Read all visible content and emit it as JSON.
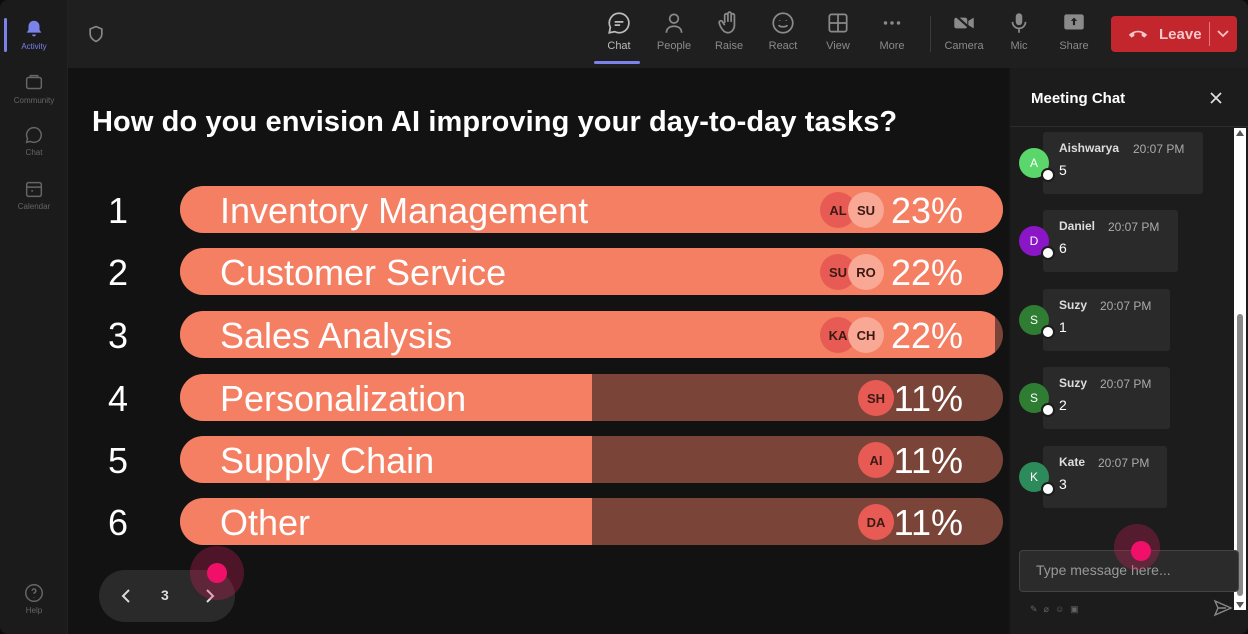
{
  "rail": {
    "items": [
      {
        "label": "Activity"
      },
      {
        "label": "Community"
      },
      {
        "label": "Chat"
      },
      {
        "label": "Calendar"
      },
      {
        "label": "Help"
      }
    ]
  },
  "toolbar": {
    "chat": "Chat",
    "people": "People",
    "raise": "Raise",
    "react": "React",
    "view": "View",
    "more": "More",
    "camera": "Camera",
    "mic": "Mic",
    "share": "Share",
    "leave": "Leave"
  },
  "poll": {
    "question": "How do you envision AI improving your day-to-day tasks?",
    "options": [
      {
        "rank": "1",
        "label": "Inventory Management",
        "percent": "23%",
        "fill": 1.0,
        "avatars": [
          "AL",
          "SU"
        ]
      },
      {
        "rank": "2",
        "label": "Customer Service",
        "percent": "22%",
        "fill": 1.0,
        "avatars": [
          "SU",
          "RO"
        ]
      },
      {
        "rank": "3",
        "label": "Sales Analysis",
        "percent": "22%",
        "fill": 0.99,
        "avatars": [
          "KA",
          "CH"
        ]
      },
      {
        "rank": "4",
        "label": "Personalization",
        "percent": "11%",
        "fill": 0.5,
        "avatars": [
          "SH"
        ]
      },
      {
        "rank": "5",
        "label": "Supply Chain",
        "percent": "11%",
        "fill": 0.5,
        "avatars": [
          "AI"
        ]
      },
      {
        "rank": "6",
        "label": "Other",
        "percent": "11%",
        "fill": 0.5,
        "avatars": [
          "DA"
        ]
      }
    ],
    "page": "3"
  },
  "chat": {
    "title": "Meeting Chat",
    "messages": [
      {
        "initial": "A",
        "name": "Aishwarya",
        "time": "20:07 PM",
        "text": "5",
        "color": "#5bd66a"
      },
      {
        "initial": "D",
        "name": "Daniel",
        "time": "20:07 PM",
        "text": "6",
        "color": "#8b16c7"
      },
      {
        "initial": "S",
        "name": "Suzy",
        "time": "20:07 PM",
        "text": "1",
        "color": "#2e7d32"
      },
      {
        "initial": "S",
        "name": "Suzy",
        "time": "20:07 PM",
        "text": "2",
        "color": "#2e7d32"
      },
      {
        "initial": "K",
        "name": "Kate",
        "time": "20:07 PM",
        "text": "3",
        "color": "#2d8a5a"
      }
    ],
    "placeholder": "Type message here..."
  },
  "colors": {
    "bar_fill": "#f47f63",
    "bar_track": "#7a4538",
    "leave": "#c4262e",
    "accent": "#7b83eb"
  }
}
